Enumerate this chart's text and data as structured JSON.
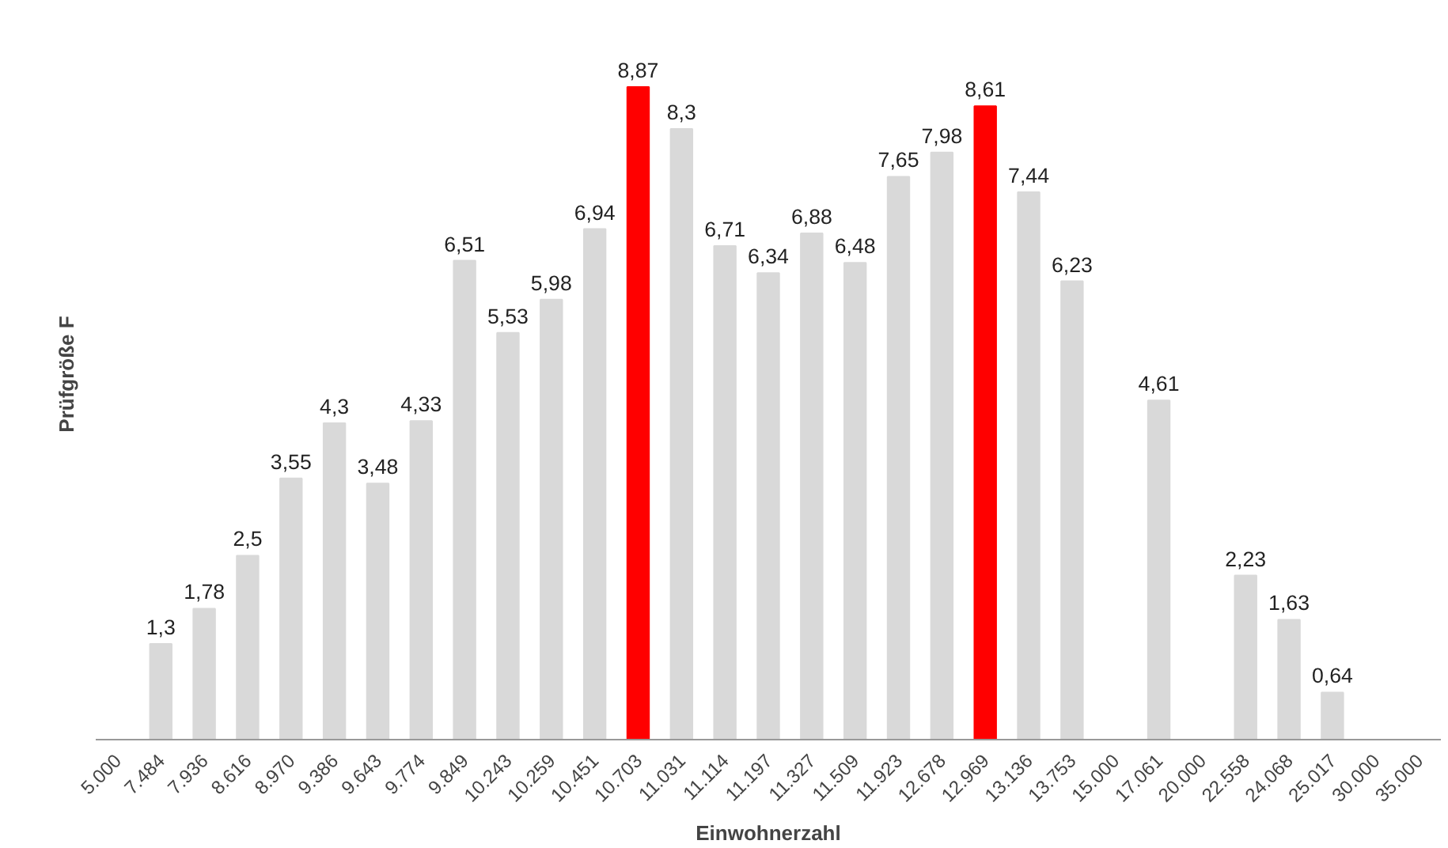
{
  "chart_data": {
    "type": "bar",
    "xlabel": "Einwohnerzahl",
    "ylabel": "Prüfgröße F",
    "categories": [
      "5.000",
      "7.484",
      "7.936",
      "8.616",
      "8.970",
      "9.386",
      "9.643",
      "9.774",
      "9.849",
      "10.243",
      "10.259",
      "10.451",
      "10.703",
      "11.031",
      "11.114",
      "11.197",
      "11.327",
      "11.509",
      "11.923",
      "12.678",
      "12.969",
      "13.136",
      "13.753",
      "15.000",
      "17.061",
      "20.000",
      "22.558",
      "24.068",
      "25.017",
      "30.000",
      "35.000"
    ],
    "values": [
      null,
      1.3,
      1.78,
      2.5,
      3.55,
      4.3,
      3.48,
      4.33,
      6.51,
      5.53,
      5.98,
      6.94,
      8.87,
      8.3,
      6.71,
      6.34,
      6.88,
      6.48,
      7.65,
      7.98,
      8.61,
      7.44,
      6.23,
      null,
      4.61,
      null,
      2.23,
      1.63,
      0.64,
      null,
      null
    ],
    "value_labels": [
      null,
      "1,3",
      "1,78",
      "2,5",
      "3,55",
      "4,3",
      "3,48",
      "4,33",
      "6,51",
      "5,53",
      "5,98",
      "6,94",
      "8,87",
      "8,3",
      "6,71",
      "6,34",
      "6,88",
      "6,48",
      "7,65",
      "7,98",
      "8,61",
      "7,44",
      "6,23",
      null,
      "4,61",
      null,
      "2,23",
      "1,63",
      "0,64",
      null,
      null
    ],
    "colors": [
      "#d9d9d9",
      "#d9d9d9",
      "#d9d9d9",
      "#d9d9d9",
      "#d9d9d9",
      "#d9d9d9",
      "#d9d9d9",
      "#d9d9d9",
      "#d9d9d9",
      "#d9d9d9",
      "#d9d9d9",
      "#d9d9d9",
      "#ff0000",
      "#d9d9d9",
      "#d9d9d9",
      "#d9d9d9",
      "#d9d9d9",
      "#d9d9d9",
      "#d9d9d9",
      "#d9d9d9",
      "#ff0000",
      "#d9d9d9",
      "#d9d9d9",
      "#d9d9d9",
      "#d9d9d9",
      "#d9d9d9",
      "#d9d9d9",
      "#d9d9d9",
      "#d9d9d9",
      "#d9d9d9",
      "#d9d9d9"
    ],
    "grid": false
  }
}
